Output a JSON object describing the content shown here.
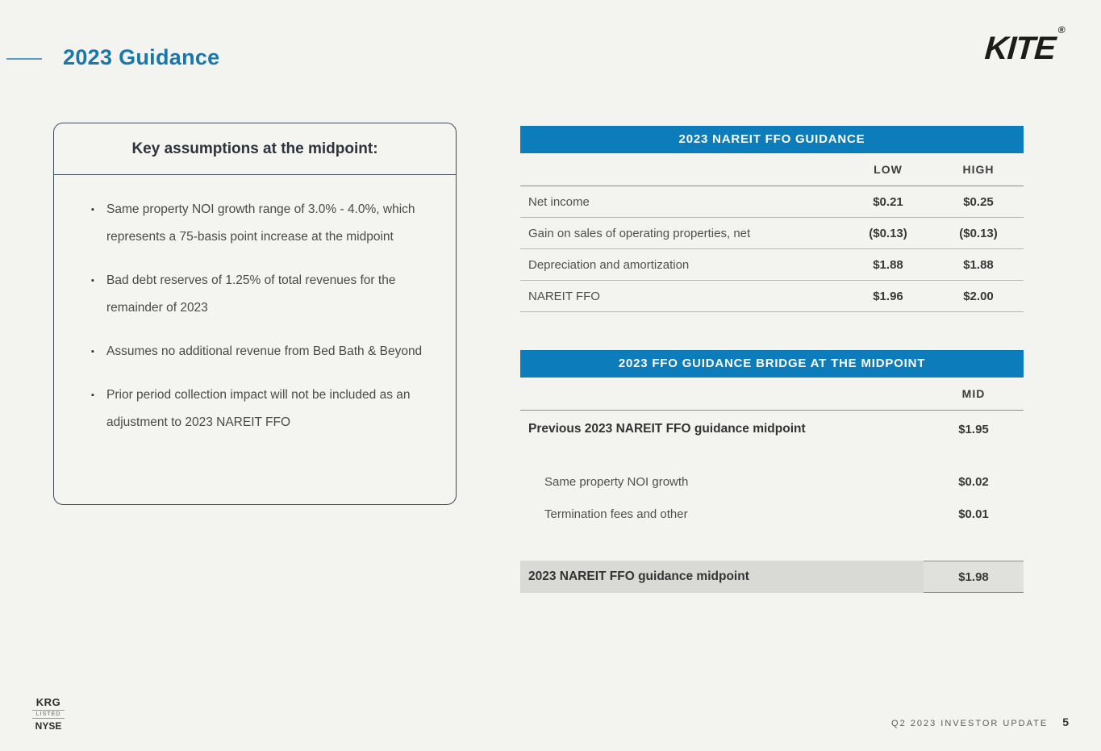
{
  "page": {
    "title": "2023 Guidance",
    "logo": "KITE",
    "logo_reg": "®",
    "footer_left": {
      "krg": "KRG",
      "listed": "LISTED",
      "nyse": "NYSE"
    },
    "footer_right": "Q2 2023 INVESTOR UPDATE",
    "page_number": "5"
  },
  "assumptions": {
    "heading": "Key assumptions at the midpoint:",
    "bullet_glyph": "▪",
    "items": [
      "Same property NOI growth range of 3.0% - 4.0%, which represents a 75-basis point increase at the midpoint",
      "Bad debt reserves of 1.25% of total revenues for the remainder of 2023",
      "Assumes no additional revenue from Bed Bath & Beyond",
      "Prior period collection impact will not be included as an adjustment to 2023 NAREIT FFO"
    ]
  },
  "ffo_table": {
    "title": "2023 NAREIT FFO GUIDANCE",
    "col_low": "LOW",
    "col_high": "HIGH",
    "rows": [
      {
        "label": "Net income",
        "low": "$0.21",
        "high": "$0.25"
      },
      {
        "label": "Gain on sales of operating properties, net",
        "low": "($0.13)",
        "high": "($0.13)"
      },
      {
        "label": "Depreciation and amortization",
        "low": "$1.88",
        "high": "$1.88"
      },
      {
        "label": "NAREIT FFO",
        "low": "$1.96",
        "high": "$2.00"
      }
    ]
  },
  "bridge_table": {
    "title": "2023 FFO GUIDANCE BRIDGE AT THE MIDPOINT",
    "col_mid": "MID",
    "rows": [
      {
        "label": "Previous 2023 NAREIT FFO guidance midpoint",
        "mid": "$1.95"
      },
      {
        "label": "Same property NOI growth",
        "mid": "$0.02"
      },
      {
        "label": "Termination fees and other",
        "mid": "$0.01"
      },
      {
        "label": "2023 NAREIT FFO guidance midpoint",
        "mid": "$1.98"
      }
    ]
  },
  "colors": {
    "accent_blue": "#0c7cba",
    "title_blue": "#1878ab",
    "background": "#f3f3f0",
    "highlight_gray": "#d9d9d6"
  }
}
